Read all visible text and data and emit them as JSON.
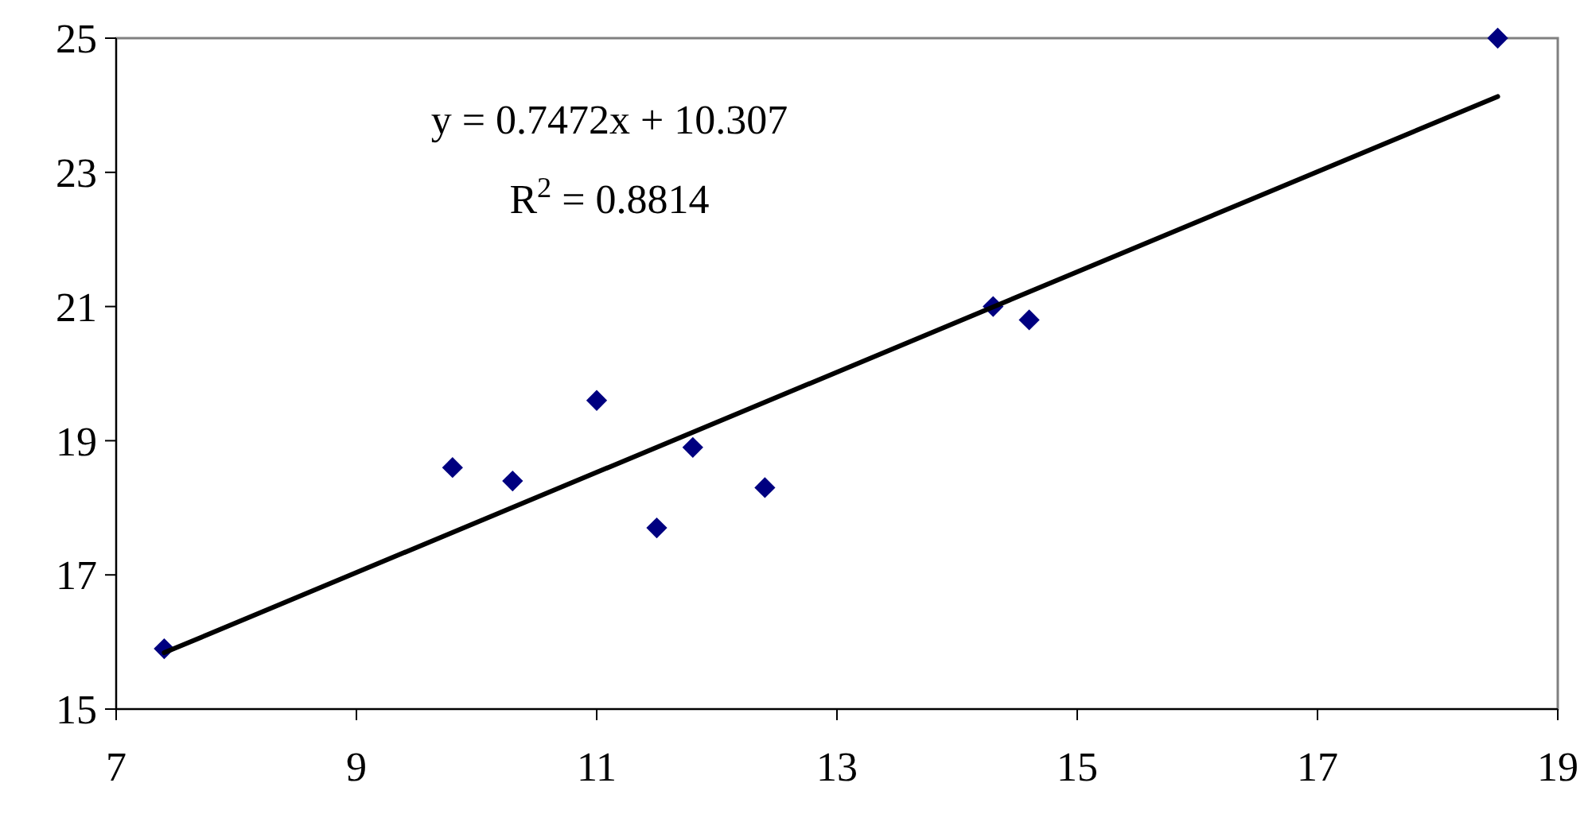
{
  "chart_data": {
    "type": "scatter",
    "grid": false,
    "xlim": [
      7,
      19
    ],
    "xticks": [
      7,
      9,
      11,
      13,
      15,
      17,
      19
    ],
    "ylim": [
      15,
      25
    ],
    "yticks": [
      15,
      17,
      19,
      21,
      23,
      25
    ],
    "series": [
      {
        "marker": "diamond",
        "color": "#000080",
        "x": [
          7.4,
          9.8,
          10.3,
          11.0,
          11.5,
          11.8,
          12.4,
          14.3,
          14.6,
          18.5
        ],
        "values": [
          15.9,
          18.6,
          18.4,
          19.6,
          17.7,
          18.9,
          18.3,
          21.0,
          20.8,
          25.0
        ]
      },
      {
        "type": "line",
        "marker": "none",
        "color": "#000000",
        "line_style": "solid",
        "x": [
          7.4,
          18.5
        ],
        "values": [
          15.84,
          24.13
        ]
      }
    ],
    "annotations": [
      "y = 0.7472x + 10.307",
      "R$^{2}$ = 0.8814"
    ]
  }
}
